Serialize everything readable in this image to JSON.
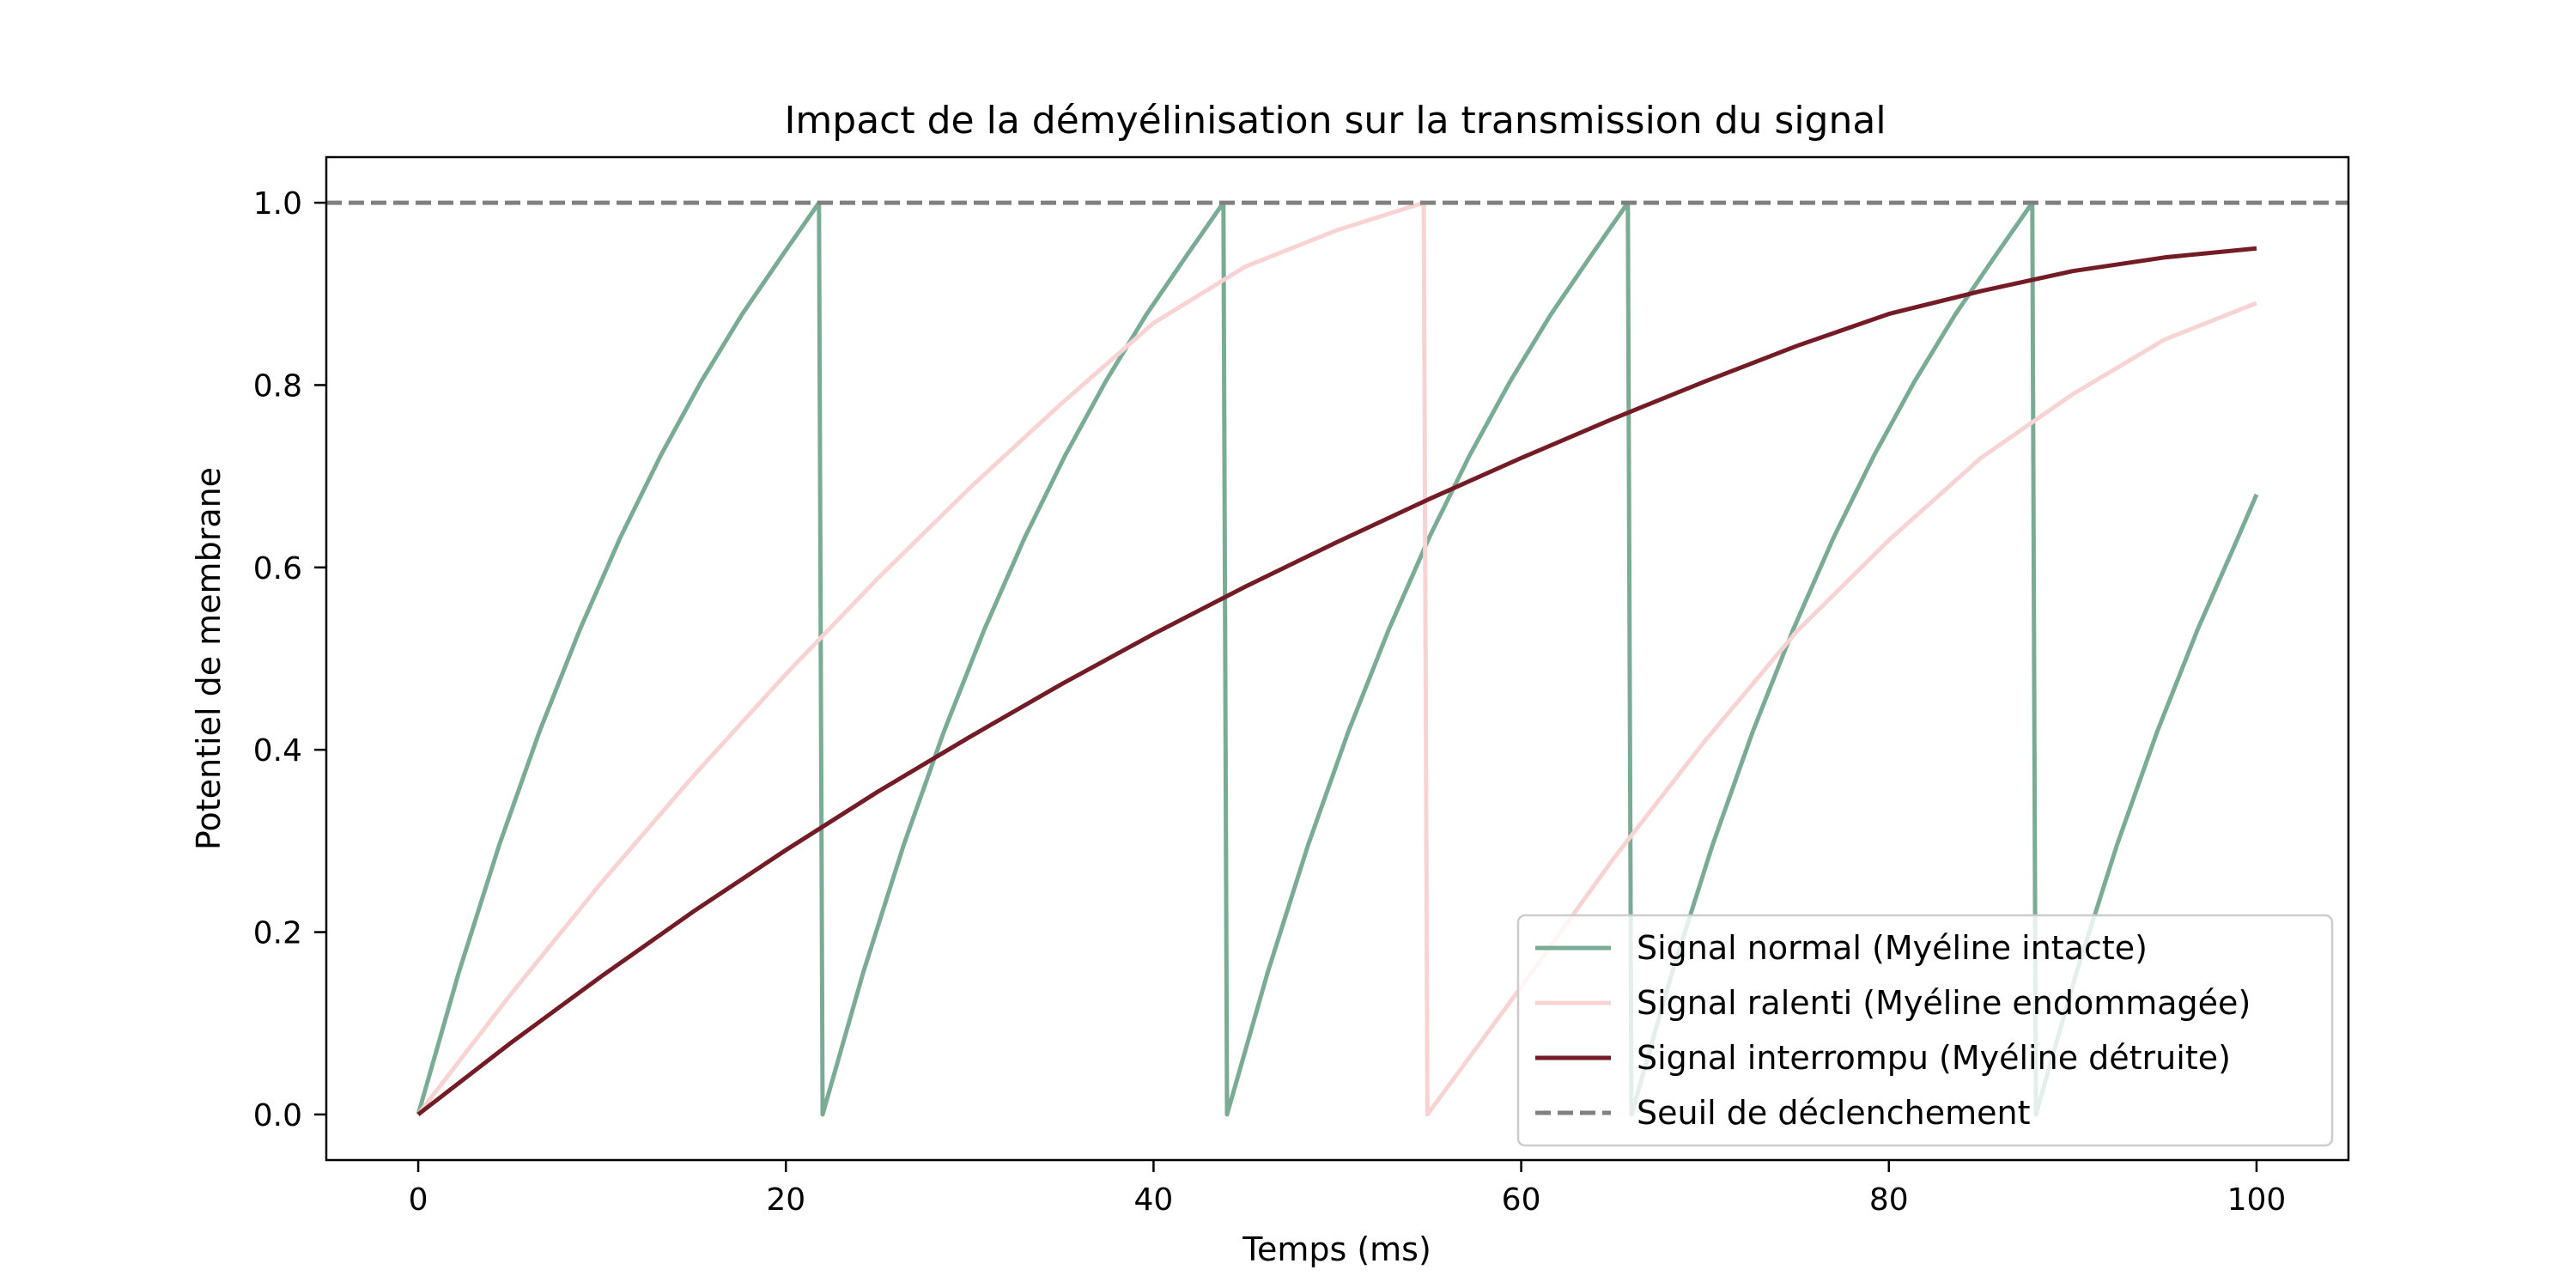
{
  "chart_data": {
    "type": "line",
    "title": "Impact de la démyélinisation sur la transmission du signal",
    "xlabel": "Temps (ms)",
    "ylabel": "Potentiel de membrane",
    "xlim": [
      -5,
      105
    ],
    "ylim": [
      -0.05,
      1.05
    ],
    "x_ticks": [
      0,
      20,
      40,
      60,
      80,
      100
    ],
    "y_ticks": [
      0.0,
      0.2,
      0.4,
      0.6,
      0.8,
      1.0
    ],
    "x_tick_labels": [
      "0",
      "20",
      "40",
      "60",
      "80",
      "100"
    ],
    "y_tick_labels": [
      "0.0",
      "0.2",
      "0.4",
      "0.6",
      "0.8",
      "1.0"
    ],
    "grid": false,
    "legend_position": "lower-right",
    "series": [
      {
        "name": "Signal normal (Myéline intacte)",
        "color": "#7aab94",
        "style": "solid",
        "x": [
          0,
          2.2,
          4.4,
          6.6,
          8.8,
          11,
          13.2,
          15.4,
          17.6,
          19.8,
          21.8,
          22.0,
          24.2,
          26.4,
          28.6,
          30.8,
          33.0,
          35.2,
          37.4,
          39.6,
          41.8,
          43.8,
          44.0,
          46.2,
          48.4,
          50.6,
          52.8,
          55.0,
          57.2,
          59.4,
          61.6,
          63.8,
          65.8,
          66.0,
          68.2,
          70.4,
          72.6,
          74.8,
          77.0,
          79.2,
          81.4,
          83.6,
          85.8,
          87.8,
          88.0,
          90.2,
          92.4,
          94.6,
          96.8,
          99.0,
          100
        ],
        "y": [
          0,
          0.155,
          0.295,
          0.42,
          0.532,
          0.633,
          0.723,
          0.804,
          0.877,
          0.942,
          1.0,
          0,
          0.155,
          0.295,
          0.42,
          0.532,
          0.633,
          0.723,
          0.804,
          0.877,
          0.942,
          1.0,
          0,
          0.155,
          0.295,
          0.42,
          0.532,
          0.633,
          0.723,
          0.804,
          0.877,
          0.942,
          1.0,
          0,
          0.155,
          0.295,
          0.42,
          0.532,
          0.633,
          0.723,
          0.804,
          0.877,
          0.942,
          1.0,
          0,
          0.155,
          0.295,
          0.42,
          0.532,
          0.633,
          0.68
        ]
      },
      {
        "name": "Signal ralenti (Myéline endommagée)",
        "color": "#f8d3d3",
        "style": "solid",
        "x": [
          0,
          5,
          10,
          15,
          20,
          25,
          30,
          35,
          40,
          45,
          50,
          54.7,
          54.9,
          60,
          65,
          70,
          75,
          80,
          85,
          90,
          95,
          100
        ],
        "y": [
          0,
          0.131,
          0.255,
          0.372,
          0.483,
          0.588,
          0.687,
          0.78,
          0.868,
          0.93,
          0.97,
          1.0,
          0,
          0.14,
          0.28,
          0.41,
          0.53,
          0.63,
          0.72,
          0.79,
          0.85,
          0.89
        ]
      },
      {
        "name": "Signal interrompu (Myéline détruite)",
        "color": "#741c25",
        "style": "solid",
        "x": [
          0,
          5,
          10,
          15,
          20,
          25,
          30,
          35,
          40,
          45,
          50,
          55,
          60,
          65,
          70,
          75,
          80,
          85,
          90,
          95,
          100
        ],
        "y": [
          0,
          0.078,
          0.152,
          0.223,
          0.29,
          0.354,
          0.414,
          0.472,
          0.527,
          0.579,
          0.628,
          0.675,
          0.72,
          0.763,
          0.804,
          0.843,
          0.878,
          0.903,
          0.925,
          0.94,
          0.95
        ]
      },
      {
        "name": "Seuil de déclenchement",
        "color": "#808080",
        "style": "dashed",
        "x": [
          -5,
          105
        ],
        "y": [
          1.0,
          1.0
        ]
      }
    ]
  }
}
